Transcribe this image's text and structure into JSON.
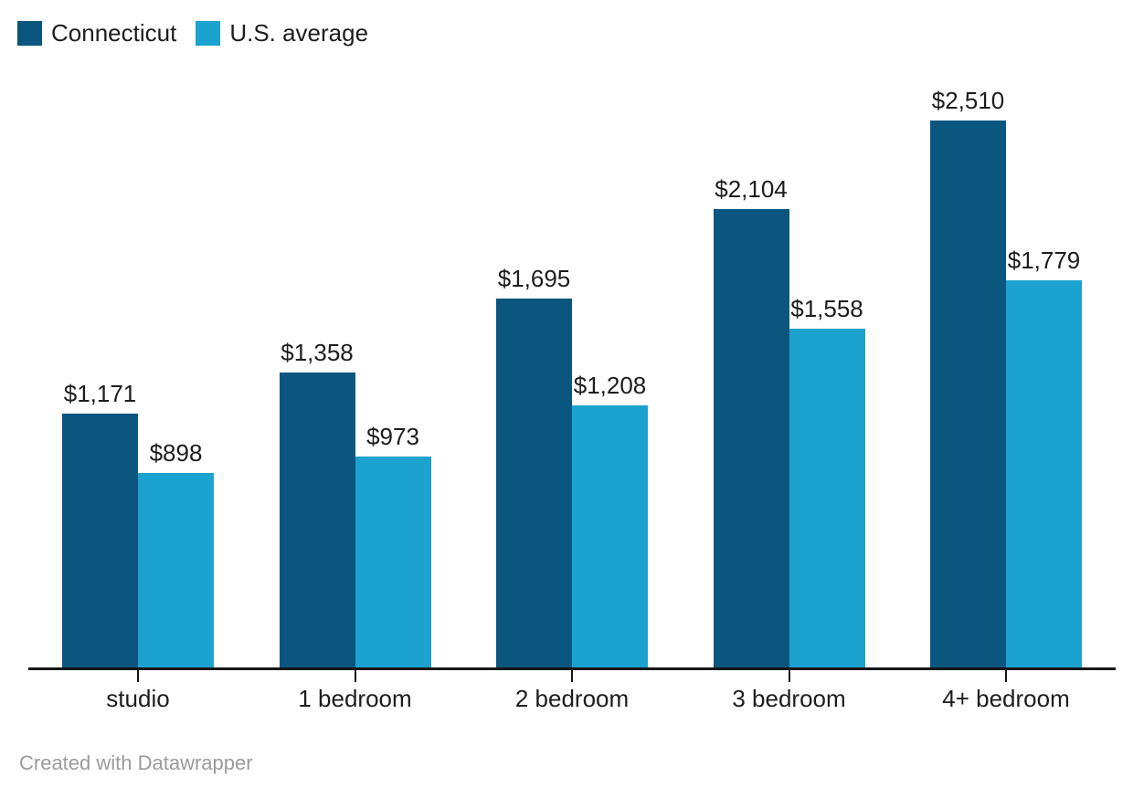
{
  "legend": {
    "items": [
      {
        "label": "Connecticut",
        "color": "#0a567f"
      },
      {
        "label": "U.S. average",
        "color": "#1ba2ce"
      }
    ]
  },
  "chart_data": {
    "type": "bar",
    "categories": [
      "studio",
      "1 bedroom",
      "2 bedroom",
      "3 bedroom",
      "4+ bedroom"
    ],
    "series": [
      {
        "name": "Connecticut",
        "color": "#0a567f",
        "values": [
          1171,
          1358,
          1695,
          2104,
          2510
        ],
        "labels": [
          "$1,171",
          "$1,358",
          "$1,695",
          "$2,104",
          "$2,510"
        ]
      },
      {
        "name": "U.S. average",
        "color": "#1ba2ce",
        "values": [
          898,
          973,
          1208,
          1558,
          1779
        ],
        "labels": [
          "$898",
          "$973",
          "$1,208",
          "$1,558",
          "$1,779"
        ]
      }
    ],
    "title": "",
    "xlabel": "",
    "ylabel": "",
    "ylim": [
      0,
      2510
    ],
    "grid": false,
    "legend_position": "top-left",
    "value_labels_shown": true,
    "axis_color": "#161616",
    "label_color": "#1d1d1d"
  },
  "footer": {
    "text": "Created with Datawrapper"
  }
}
